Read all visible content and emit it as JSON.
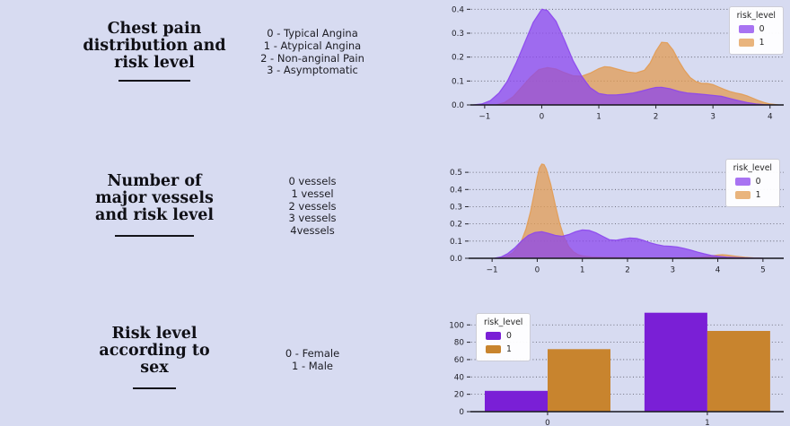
{
  "page": {
    "background": "#d7dbf1"
  },
  "rows": [
    {
      "title_lines": [
        "Chest pain",
        "distribution and",
        "risk level"
      ],
      "categories": [
        "0 - Typical Angina",
        "1 - Atypical Angina",
        "2 - Non-anginal Pain",
        "3 - Asymptomatic"
      ]
    },
    {
      "title_lines": [
        "Number of",
        "major vessels",
        "and risk level"
      ],
      "categories": [
        "0 vessels",
        "1 vessel",
        "2 vessels",
        "3 vessels",
        "4vessels"
      ]
    },
    {
      "title_lines": [
        "Risk level",
        "according to",
        "sex"
      ],
      "categories": [
        "0 - Female",
        "1 - Male"
      ]
    }
  ],
  "chart_data": [
    {
      "type": "kde",
      "title": "",
      "xlabel": "",
      "ylabel": "",
      "description": "Chest pain type density by risk level",
      "xlim": [
        -1.25,
        4.24
      ],
      "ylim": [
        0,
        0.42
      ],
      "grid": true,
      "x_ticks": [
        {
          "v": -1,
          "label": "−1"
        },
        {
          "v": 0,
          "label": "0"
        },
        {
          "v": 1,
          "label": "1"
        },
        {
          "v": 2,
          "label": "2"
        },
        {
          "v": 3,
          "label": "3"
        },
        {
          "v": 4,
          "label": "4"
        }
      ],
      "y_ticks": [
        {
          "v": 0,
          "label": "0.0"
        },
        {
          "v": 0.1,
          "label": "0.1"
        },
        {
          "v": 0.2,
          "label": "0.2"
        },
        {
          "v": 0.3,
          "label": "0.3"
        },
        {
          "v": 0.4,
          "label": "0.4"
        }
      ],
      "legend": {
        "title": "risk_level",
        "position": "top-right",
        "items": [
          {
            "label": "0",
            "color": "#a873f2"
          },
          {
            "label": "1",
            "color": "#e9b47d"
          }
        ]
      },
      "series": [
        {
          "name": "1",
          "color": "#e29b52",
          "fill_opacity": 0.75,
          "points": [
            [
              -0.8,
              0
            ],
            [
              -0.65,
              0.01
            ],
            [
              -0.5,
              0.035
            ],
            [
              -0.35,
              0.075
            ],
            [
              -0.2,
              0.115
            ],
            [
              -0.05,
              0.148
            ],
            [
              0.1,
              0.156
            ],
            [
              0.25,
              0.15
            ],
            [
              0.4,
              0.135
            ],
            [
              0.55,
              0.122
            ],
            [
              0.7,
              0.12
            ],
            [
              0.85,
              0.133
            ],
            [
              1.0,
              0.152
            ],
            [
              1.1,
              0.16
            ],
            [
              1.2,
              0.158
            ],
            [
              1.35,
              0.148
            ],
            [
              1.5,
              0.138
            ],
            [
              1.65,
              0.134
            ],
            [
              1.8,
              0.145
            ],
            [
              1.9,
              0.175
            ],
            [
              2.0,
              0.225
            ],
            [
              2.1,
              0.262
            ],
            [
              2.2,
              0.26
            ],
            [
              2.3,
              0.23
            ],
            [
              2.4,
              0.185
            ],
            [
              2.5,
              0.145
            ],
            [
              2.6,
              0.115
            ],
            [
              2.7,
              0.098
            ],
            [
              2.8,
              0.09
            ],
            [
              2.9,
              0.09
            ],
            [
              3.0,
              0.085
            ],
            [
              3.1,
              0.075
            ],
            [
              3.2,
              0.065
            ],
            [
              3.3,
              0.056
            ],
            [
              3.4,
              0.05
            ],
            [
              3.5,
              0.045
            ],
            [
              3.6,
              0.038
            ],
            [
              3.7,
              0.028
            ],
            [
              3.8,
              0.018
            ],
            [
              3.9,
              0.01
            ],
            [
              4.0,
              0.004
            ],
            [
              4.15,
              0
            ]
          ]
        },
        {
          "name": "0",
          "color": "#8b45ee",
          "fill_opacity": 0.75,
          "points": [
            [
              -1.2,
              0
            ],
            [
              -1.05,
              0.004
            ],
            [
              -0.9,
              0.018
            ],
            [
              -0.75,
              0.05
            ],
            [
              -0.6,
              0.1
            ],
            [
              -0.45,
              0.175
            ],
            [
              -0.3,
              0.26
            ],
            [
              -0.15,
              0.345
            ],
            [
              0,
              0.4
            ],
            [
              0.1,
              0.395
            ],
            [
              0.25,
              0.35
            ],
            [
              0.4,
              0.27
            ],
            [
              0.55,
              0.185
            ],
            [
              0.7,
              0.12
            ],
            [
              0.85,
              0.072
            ],
            [
              1.0,
              0.048
            ],
            [
              1.15,
              0.042
            ],
            [
              1.3,
              0.042
            ],
            [
              1.45,
              0.045
            ],
            [
              1.6,
              0.05
            ],
            [
              1.75,
              0.058
            ],
            [
              1.9,
              0.068
            ],
            [
              2.0,
              0.073
            ],
            [
              2.1,
              0.074
            ],
            [
              2.25,
              0.068
            ],
            [
              2.4,
              0.057
            ],
            [
              2.55,
              0.05
            ],
            [
              2.7,
              0.047
            ],
            [
              2.85,
              0.044
            ],
            [
              3.0,
              0.04
            ],
            [
              3.15,
              0.036
            ],
            [
              3.3,
              0.027
            ],
            [
              3.45,
              0.018
            ],
            [
              3.6,
              0.01
            ],
            [
              3.75,
              0.004
            ],
            [
              3.9,
              0.001
            ],
            [
              4.0,
              0
            ]
          ]
        }
      ]
    },
    {
      "type": "kde",
      "title": "",
      "xlabel": "",
      "ylabel": "",
      "description": "Number of major vessels density by risk level",
      "xlim": [
        -1.52,
        5.46
      ],
      "ylim": [
        0,
        0.558
      ],
      "grid": true,
      "x_ticks": [
        {
          "v": -1,
          "label": "−1"
        },
        {
          "v": 0,
          "label": "0"
        },
        {
          "v": 1,
          "label": "1"
        },
        {
          "v": 2,
          "label": "2"
        },
        {
          "v": 3,
          "label": "3"
        },
        {
          "v": 4,
          "label": "4"
        },
        {
          "v": 5,
          "label": "5"
        }
      ],
      "y_ticks": [
        {
          "v": 0,
          "label": "0.0"
        },
        {
          "v": 0.1,
          "label": "0.1"
        },
        {
          "v": 0.2,
          "label": "0.2"
        },
        {
          "v": 0.3,
          "label": "0.3"
        },
        {
          "v": 0.4,
          "label": "0.4"
        },
        {
          "v": 0.5,
          "label": "0.5"
        }
      ],
      "legend": {
        "title": "risk_level",
        "position": "top-right",
        "items": [
          {
            "label": "0",
            "color": "#a873f2"
          },
          {
            "label": "1",
            "color": "#e9b47d"
          }
        ]
      },
      "series": [
        {
          "name": "1",
          "color": "#e29b52",
          "fill_opacity": 0.75,
          "points": [
            [
              -0.85,
              0
            ],
            [
              -0.7,
              0.01
            ],
            [
              -0.55,
              0.03
            ],
            [
              -0.45,
              0.06
            ],
            [
              -0.35,
              0.1
            ],
            [
              -0.25,
              0.17
            ],
            [
              -0.15,
              0.27
            ],
            [
              -0.05,
              0.4
            ],
            [
              0,
              0.47
            ],
            [
              0.05,
              0.525
            ],
            [
              0.1,
              0.548
            ],
            [
              0.15,
              0.545
            ],
            [
              0.2,
              0.52
            ],
            [
              0.3,
              0.43
            ],
            [
              0.4,
              0.31
            ],
            [
              0.5,
              0.2
            ],
            [
              0.6,
              0.12
            ],
            [
              0.7,
              0.068
            ],
            [
              0.8,
              0.038
            ],
            [
              0.9,
              0.022
            ],
            [
              1.0,
              0.014
            ],
            [
              1.2,
              0.008
            ],
            [
              1.5,
              0.005
            ],
            [
              2.0,
              0.003
            ],
            [
              2.5,
              0.002
            ],
            [
              3.0,
              0.002
            ],
            [
              3.3,
              0.003
            ],
            [
              3.6,
              0.006
            ],
            [
              3.8,
              0.012
            ],
            [
              4.0,
              0.019
            ],
            [
              4.1,
              0.021
            ],
            [
              4.2,
              0.019
            ],
            [
              4.4,
              0.012
            ],
            [
              4.6,
              0.006
            ],
            [
              4.8,
              0.002
            ],
            [
              5.0,
              0
            ]
          ]
        },
        {
          "name": "0",
          "color": "#8b45ee",
          "fill_opacity": 0.75,
          "points": [
            [
              -0.95,
              0
            ],
            [
              -0.8,
              0.008
            ],
            [
              -0.65,
              0.028
            ],
            [
              -0.5,
              0.06
            ],
            [
              -0.35,
              0.1
            ],
            [
              -0.2,
              0.133
            ],
            [
              -0.05,
              0.15
            ],
            [
              0.1,
              0.155
            ],
            [
              0.25,
              0.145
            ],
            [
              0.4,
              0.133
            ],
            [
              0.55,
              0.128
            ],
            [
              0.7,
              0.138
            ],
            [
              0.85,
              0.155
            ],
            [
              1.0,
              0.165
            ],
            [
              1.15,
              0.162
            ],
            [
              1.3,
              0.148
            ],
            [
              1.45,
              0.128
            ],
            [
              1.6,
              0.108
            ],
            [
              1.75,
              0.105
            ],
            [
              1.9,
              0.112
            ],
            [
              2.05,
              0.118
            ],
            [
              2.2,
              0.115
            ],
            [
              2.35,
              0.105
            ],
            [
              2.5,
              0.09
            ],
            [
              2.65,
              0.08
            ],
            [
              2.8,
              0.072
            ],
            [
              2.95,
              0.07
            ],
            [
              3.1,
              0.066
            ],
            [
              3.25,
              0.058
            ],
            [
              3.4,
              0.048
            ],
            [
              3.55,
              0.036
            ],
            [
              3.7,
              0.026
            ],
            [
              3.85,
              0.017
            ],
            [
              4.0,
              0.012
            ],
            [
              4.2,
              0.007
            ],
            [
              4.4,
              0.004
            ],
            [
              4.6,
              0.002
            ],
            [
              4.8,
              0.001
            ],
            [
              5.0,
              0
            ]
          ]
        }
      ]
    },
    {
      "type": "bar",
      "title": "",
      "xlabel": "",
      "ylabel": "",
      "description": "Risk level counts by sex",
      "categories": [
        "0",
        "1"
      ],
      "categories_x": [
        0,
        1
      ],
      "xlim": [
        -0.483,
        1.478
      ],
      "ylim": [
        0,
        123
      ],
      "grid": true,
      "x_ticks": [
        {
          "v": 0,
          "label": "0"
        },
        {
          "v": 1,
          "label": "1"
        }
      ],
      "y_ticks": [
        {
          "v": 0,
          "label": "0"
        },
        {
          "v": 20,
          "label": "20"
        },
        {
          "v": 40,
          "label": "40"
        },
        {
          "v": 60,
          "label": "60"
        },
        {
          "v": 80,
          "label": "80"
        },
        {
          "v": 100,
          "label": "100"
        }
      ],
      "legend": {
        "title": "risk_level",
        "position": "top-left",
        "items": [
          {
            "label": "0",
            "color": "#7a1fd6"
          },
          {
            "label": "1",
            "color": "#c8842e"
          }
        ]
      },
      "series": [
        {
          "name": "0",
          "color": "#7a1fd6",
          "values": [
            24,
            114
          ]
        },
        {
          "name": "1",
          "color": "#c8842e",
          "values": [
            72,
            93
          ]
        }
      ]
    }
  ]
}
